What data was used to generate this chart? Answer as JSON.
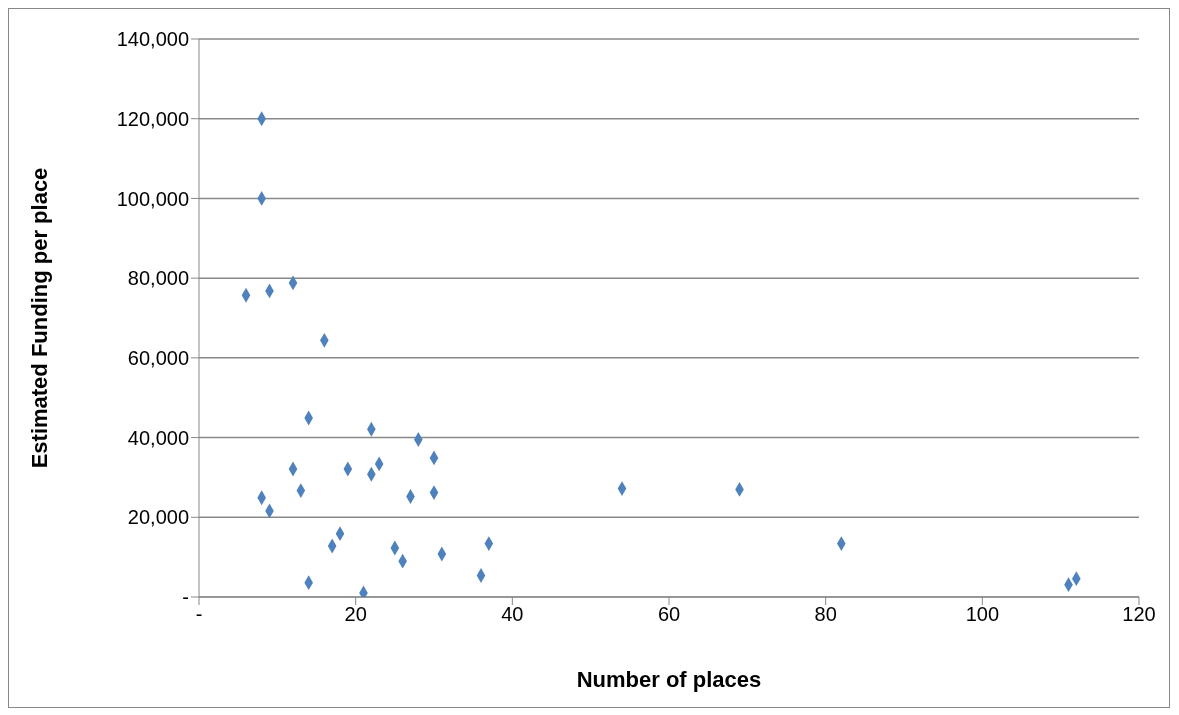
{
  "chart_data": {
    "type": "scatter",
    "xlabel": "Number of places",
    "ylabel": "Estimated Funding per place",
    "x": [
      8,
      8,
      6,
      9,
      12,
      16,
      14,
      22,
      28,
      30,
      12,
      19,
      23,
      22,
      8,
      9,
      13,
      27,
      30,
      54,
      69,
      82,
      18,
      17,
      25,
      26,
      31,
      37,
      14,
      21,
      36,
      111,
      112
    ],
    "series": [
      {
        "color": "#4f81bd",
        "values": [
          120000,
          100000,
          75700,
          76800,
          78800,
          64400,
          44900,
          42100,
          39500,
          34900,
          32100,
          32100,
          33400,
          30800,
          24900,
          21600,
          26700,
          25200,
          26200,
          27200,
          27000,
          13400,
          15900,
          12800,
          12300,
          9000,
          10800,
          13400,
          3600,
          1000,
          5400,
          3100,
          4600
        ]
      }
    ],
    "xlim": [
      0,
      120
    ],
    "xticks": [
      {
        "value": 0,
        "label": "-"
      },
      20,
      40,
      60,
      80,
      100,
      120
    ],
    "ylim": [
      0,
      140000
    ],
    "yticks": [
      {
        "value": 0,
        "label": "-"
      },
      {
        "value": 20000,
        "label": "20,000"
      },
      {
        "value": 40000,
        "label": "40,000"
      },
      {
        "value": 60000,
        "label": "60,000"
      },
      {
        "value": 80000,
        "label": "80,000"
      },
      {
        "value": 100000,
        "label": "100,000"
      },
      {
        "value": 120000,
        "label": "120,000"
      },
      {
        "value": 140000,
        "label": "140,000"
      }
    ],
    "grid": "y",
    "marker": "diamond",
    "legend": false
  }
}
